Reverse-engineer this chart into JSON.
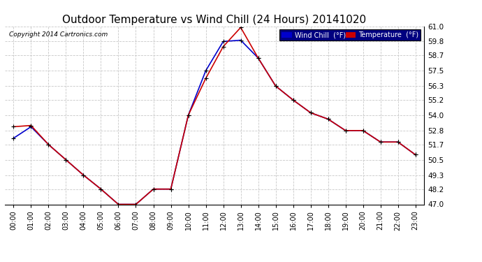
{
  "title": "Outdoor Temperature vs Wind Chill (24 Hours) 20141020",
  "copyright": "Copyright 2014 Cartronics.com",
  "ylim": [
    47.0,
    61.0
  ],
  "yticks": [
    47.0,
    48.2,
    49.3,
    50.5,
    51.7,
    52.8,
    54.0,
    55.2,
    56.3,
    57.5,
    58.7,
    59.8,
    61.0
  ],
  "xticks": [
    0,
    1,
    2,
    3,
    4,
    5,
    6,
    7,
    8,
    9,
    10,
    11,
    12,
    13,
    14,
    15,
    16,
    17,
    18,
    19,
    20,
    21,
    22,
    23
  ],
  "xtick_labels": [
    "00:00",
    "01:00",
    "02:00",
    "03:00",
    "04:00",
    "05:00",
    "06:00",
    "07:00",
    "08:00",
    "09:00",
    "10:00",
    "11:00",
    "12:00",
    "13:00",
    "14:00",
    "15:00",
    "16:00",
    "17:00",
    "18:00",
    "19:00",
    "20:00",
    "21:00",
    "22:00",
    "23:00"
  ],
  "temp_x": [
    0,
    1,
    2,
    3,
    4,
    5,
    6,
    7,
    8,
    9,
    10,
    11,
    12,
    13,
    14,
    15,
    16,
    17,
    18,
    19,
    20,
    21,
    22,
    23
  ],
  "temp_y": [
    53.1,
    53.2,
    51.7,
    50.5,
    49.3,
    48.2,
    47.0,
    47.0,
    48.2,
    48.2,
    54.0,
    56.9,
    59.4,
    60.9,
    58.5,
    56.3,
    55.2,
    54.2,
    53.7,
    52.8,
    52.8,
    51.9,
    51.9,
    50.9
  ],
  "wind_x": [
    0,
    1,
    2,
    3,
    4,
    5,
    6,
    7,
    8,
    9,
    10,
    11,
    12,
    13,
    14,
    15,
    16,
    17,
    18,
    19,
    20,
    21,
    22,
    23
  ],
  "wind_y": [
    52.2,
    53.1,
    51.7,
    50.5,
    49.3,
    48.2,
    47.0,
    47.0,
    48.2,
    48.2,
    54.0,
    57.5,
    59.8,
    59.9,
    58.5,
    56.3,
    55.2,
    54.2,
    53.7,
    52.8,
    52.8,
    51.9,
    51.9,
    50.9
  ],
  "temp_color": "#cc0000",
  "wind_color": "#0000cc",
  "bg_color": "#ffffff",
  "grid_color": "#c8c8c8",
  "title_fontsize": 11,
  "legend_wind_bg": "#0000cc",
  "legend_temp_bg": "#cc0000"
}
